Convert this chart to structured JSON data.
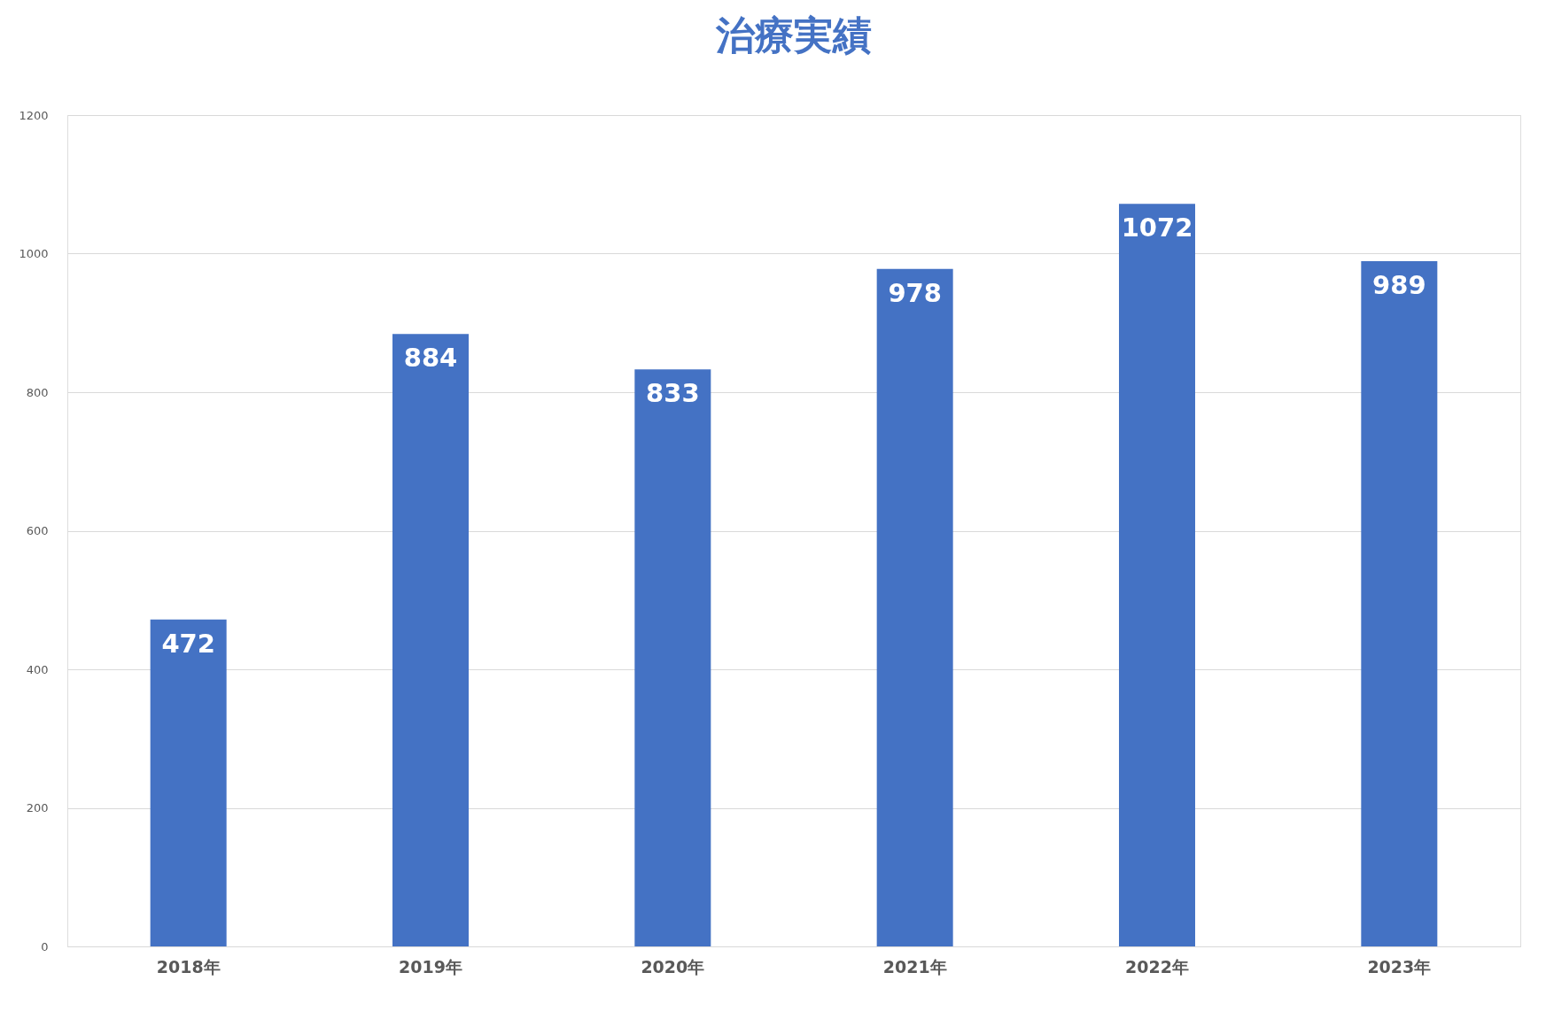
{
  "chart_data": {
    "type": "bar",
    "title": "治療実績",
    "categories": [
      "2018年",
      "2019年",
      "2020年",
      "2021年",
      "2022年",
      "2023年"
    ],
    "values": [
      472,
      884,
      833,
      978,
      1072,
      989
    ],
    "color": "#4472c4",
    "ylim": [
      0,
      1200
    ],
    "yticks": [
      0,
      200,
      400,
      600,
      800,
      1000,
      1200
    ],
    "grid": "y",
    "data_labels": true
  }
}
